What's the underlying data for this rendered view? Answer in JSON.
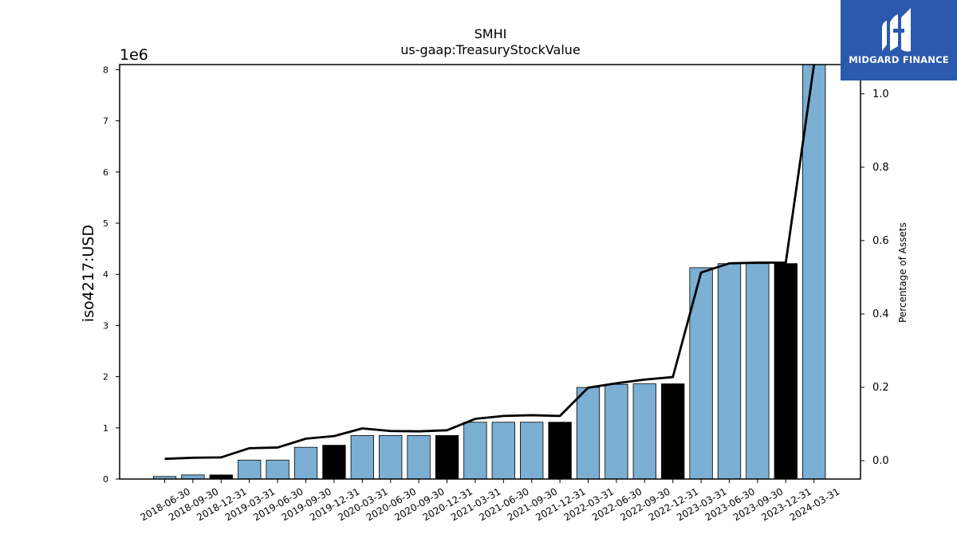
{
  "chart_data": {
    "type": "bar",
    "title": "SMHI",
    "subtitle": "us-gaap:TreasuryStockValue",
    "ylabel": "iso4217:USD",
    "y_offset_text": "1e6",
    "y2label": "Percentage of Assets",
    "ylim": [
      0,
      8.1
    ],
    "y_scale": 1000000,
    "y2lim": [
      -0.05,
      1.08
    ],
    "yticks": [
      "0",
      "1",
      "2",
      "3",
      "4",
      "5",
      "6",
      "7",
      "8"
    ],
    "y2ticks": [
      "0.0",
      "0.2",
      "0.4",
      "0.6",
      "0.8",
      "1.0"
    ],
    "categories": [
      "2018-06-30",
      "2018-09-30",
      "2018-12-31",
      "2019-03-31",
      "2019-06-30",
      "2019-09-30",
      "2019-12-31",
      "2020-03-31",
      "2020-06-30",
      "2020-09-30",
      "2020-12-31",
      "2021-03-31",
      "2021-06-30",
      "2021-09-30",
      "2021-12-31",
      "2022-03-31",
      "2022-06-30",
      "2022-09-30",
      "2022-12-31",
      "2023-03-31",
      "2023-06-30",
      "2023-09-30",
      "2023-12-31",
      "2024-03-31"
    ],
    "series": [
      {
        "type": "bar",
        "values": [
          0.05,
          0.08,
          0.08,
          0.37,
          0.37,
          0.62,
          0.66,
          0.85,
          0.85,
          0.85,
          0.85,
          1.11,
          1.11,
          1.11,
          1.11,
          1.79,
          1.85,
          1.86,
          1.86,
          4.13,
          4.21,
          4.21,
          4.21,
          8.1
        ],
        "year_end_highlight": [
          false,
          false,
          true,
          false,
          false,
          false,
          true,
          false,
          false,
          false,
          true,
          false,
          false,
          false,
          true,
          false,
          false,
          false,
          true,
          false,
          false,
          false,
          true,
          false
        ]
      },
      {
        "type": "line",
        "axis": "right",
        "values": [
          0.005,
          0.008,
          0.009,
          0.034,
          0.036,
          0.06,
          0.067,
          0.088,
          0.081,
          0.08,
          0.083,
          0.114,
          0.122,
          0.124,
          0.122,
          0.199,
          0.211,
          0.221,
          0.228,
          0.513,
          0.538,
          0.54,
          0.54,
          1.08
        ]
      }
    ],
    "colors": {
      "bar": "#7bafd4",
      "bar_highlight": "#000000",
      "line": "#000000"
    },
    "grid": false
  },
  "logo": {
    "text": "MIDGARD FINANCE",
    "background": "#2b59ad"
  }
}
